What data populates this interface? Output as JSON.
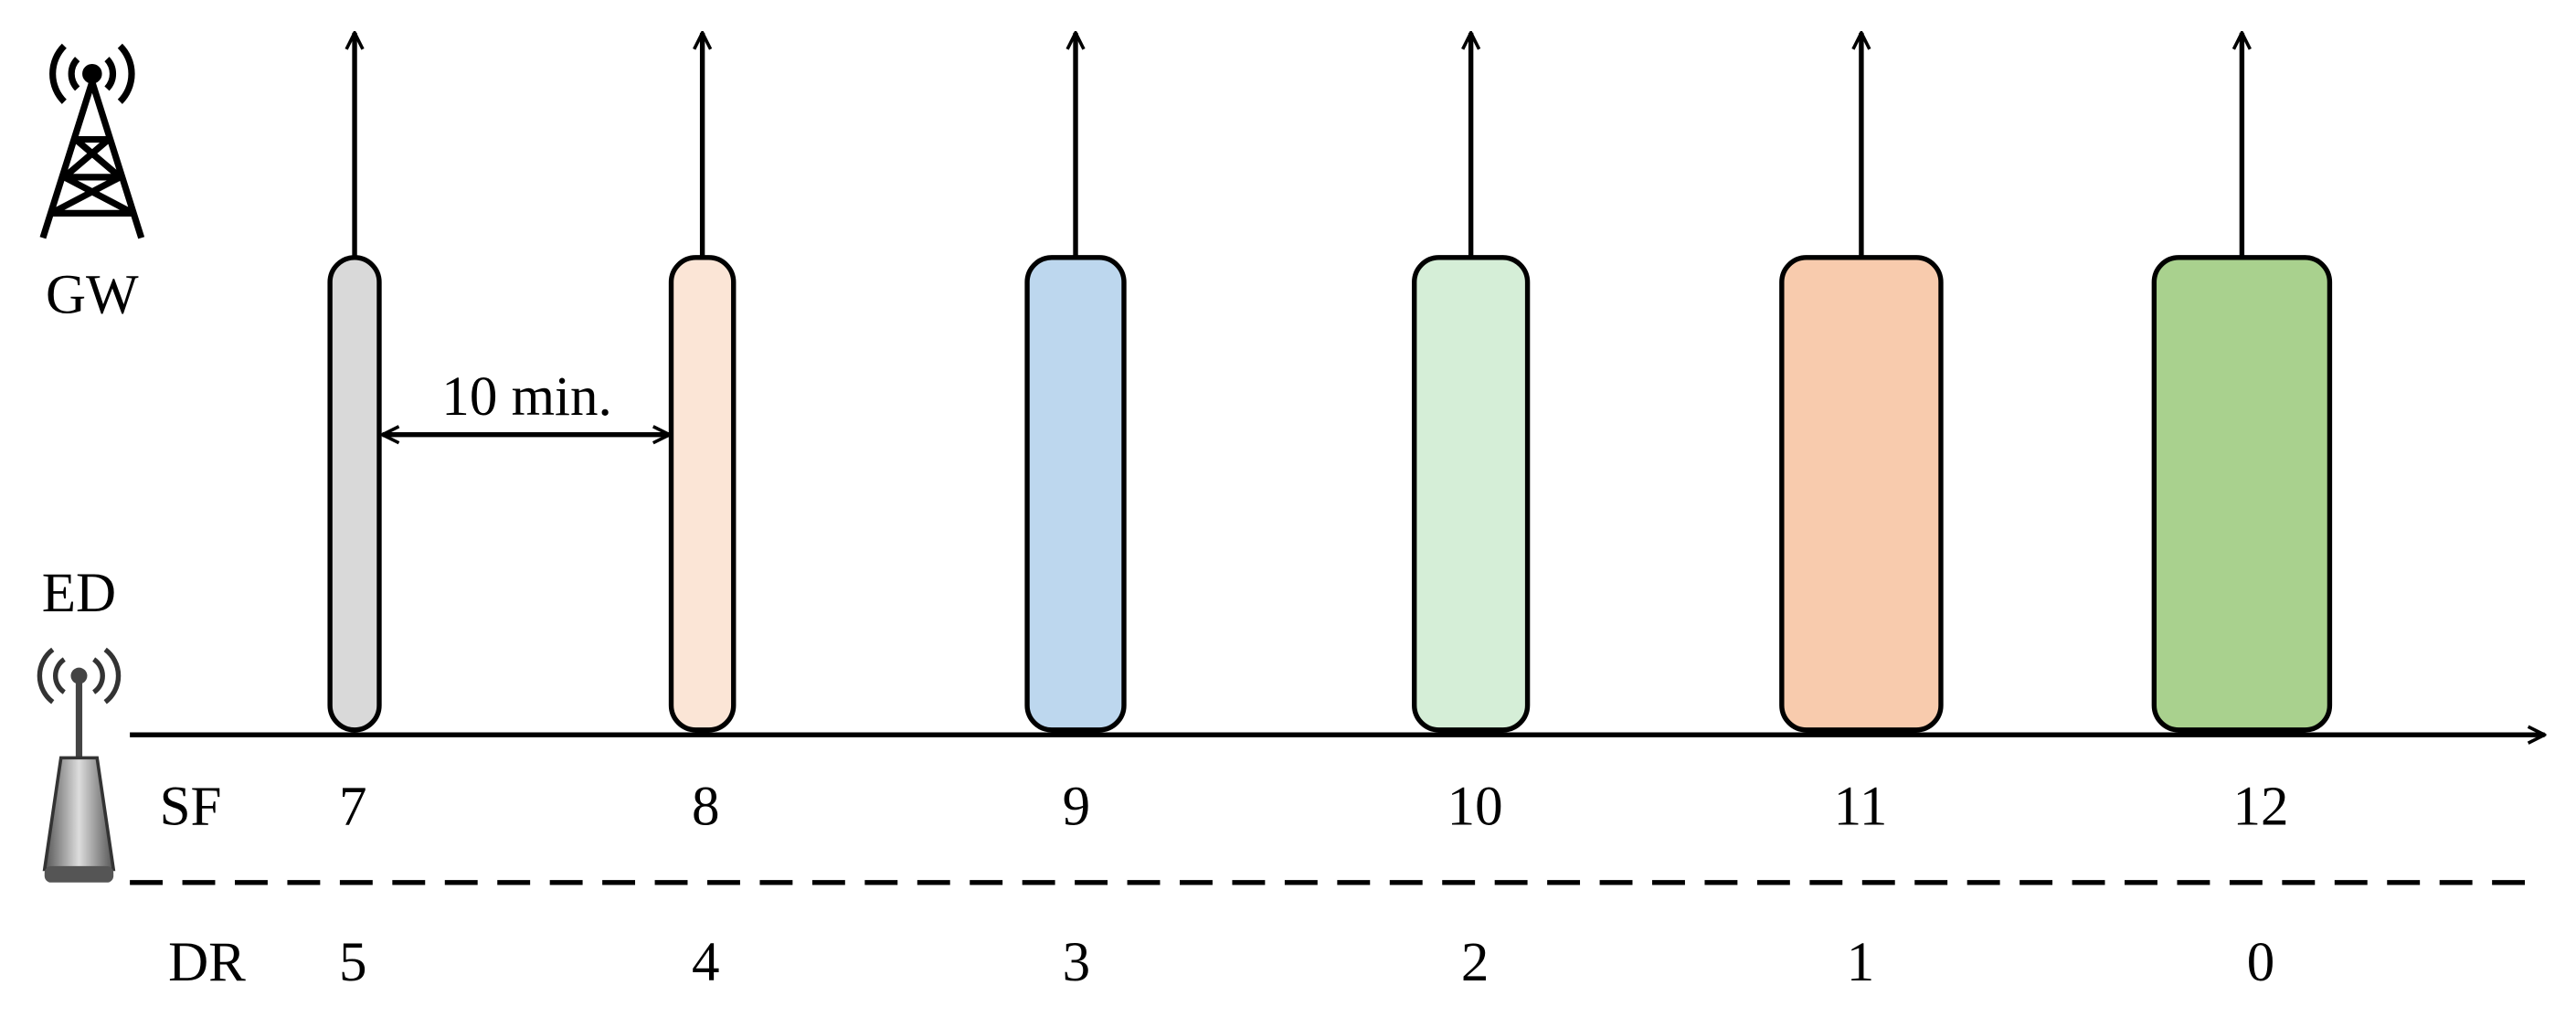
{
  "gateway_label": "GW",
  "device_label": "ED",
  "interval_label": "10 min.",
  "rows": {
    "sf": "SF",
    "dr": "DR"
  },
  "packets": [
    {
      "sf": "7",
      "dr": "5"
    },
    {
      "sf": "8",
      "dr": "4"
    },
    {
      "sf": "9",
      "dr": "3"
    },
    {
      "sf": "10",
      "dr": "2"
    },
    {
      "sf": "11",
      "dr": "1"
    },
    {
      "sf": "12",
      "dr": "0"
    }
  ]
}
